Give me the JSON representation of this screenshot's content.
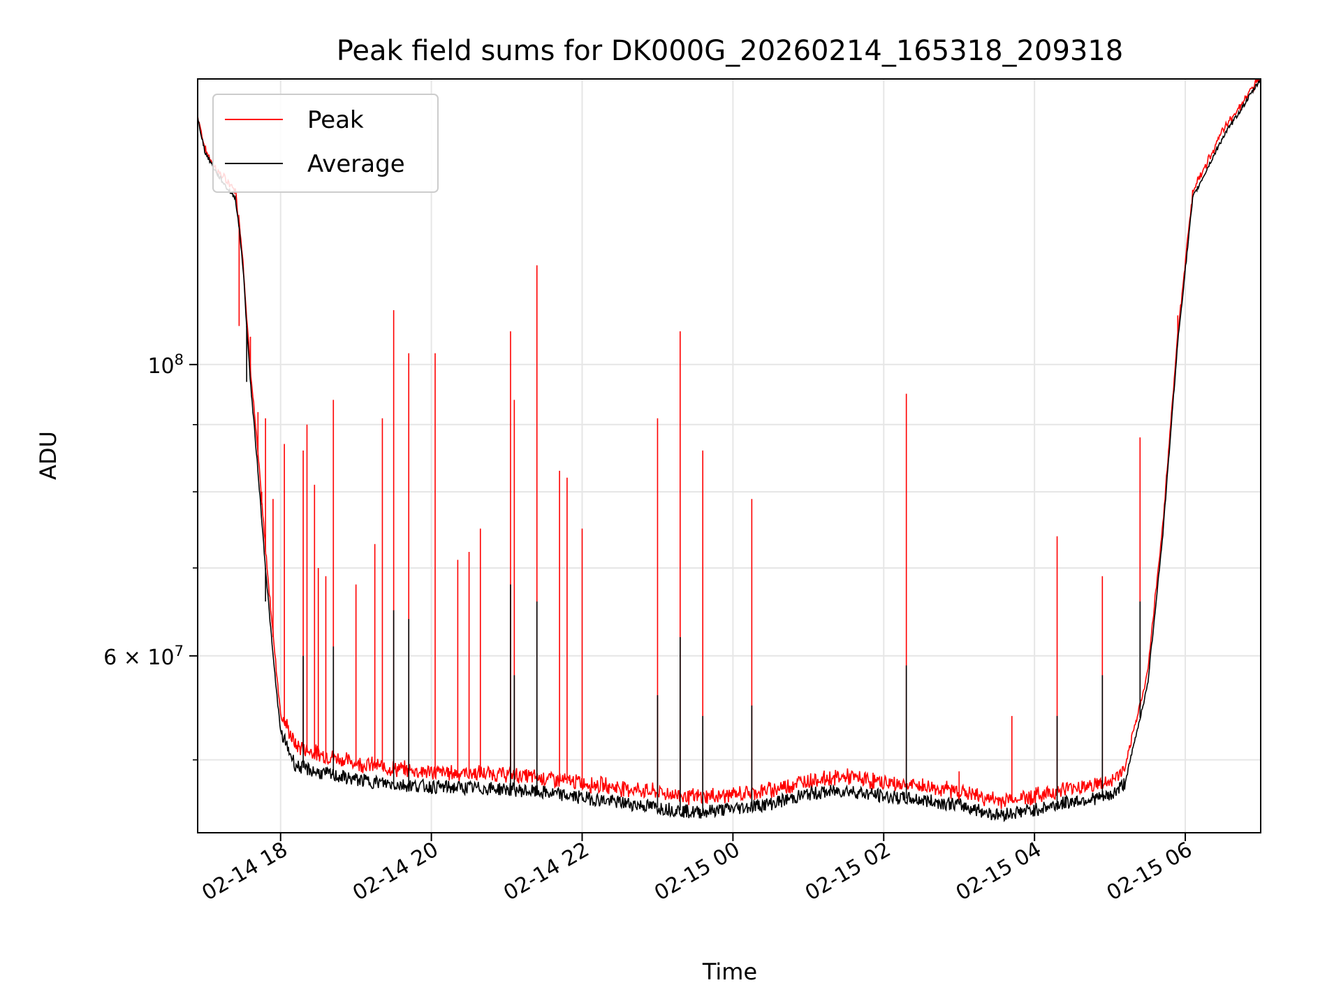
{
  "chart_data": {
    "type": "line",
    "title": "Peak field sums for DK000G_20260214_165318_209318",
    "xlabel": "Time",
    "ylabel": "ADU",
    "yscale": "log",
    "grid": true,
    "legend_position": "upper-left",
    "xlim_hours": [
      -1.1,
      13.0
    ],
    "ylim": [
      44000000,
      165000000
    ],
    "x_ticks": [
      {
        "hours": 0,
        "label": "02-14 18"
      },
      {
        "hours": 2,
        "label": "02-14 20"
      },
      {
        "hours": 4,
        "label": "02-14 22"
      },
      {
        "hours": 6,
        "label": "02-15 00"
      },
      {
        "hours": 8,
        "label": "02-15 02"
      },
      {
        "hours": 10,
        "label": "02-15 04"
      },
      {
        "hours": 12,
        "label": "02-15 06"
      }
    ],
    "y_major_ticks": [
      {
        "value": 100000000,
        "base": "10",
        "exp": "8"
      },
      {
        "value": 60000000,
        "base": "6 × 10",
        "exp": "7"
      }
    ],
    "y_minor_gridlines": [
      50000000,
      70000000,
      80000000,
      90000000
    ],
    "series": [
      {
        "name": "Peak",
        "color": "#ff0000",
        "baseline": [
          [
            -1.1,
            154000000
          ],
          [
            -1.0,
            145000000
          ],
          [
            -0.85,
            140000000
          ],
          [
            -0.7,
            137000000
          ],
          [
            -0.6,
            135000000
          ],
          [
            -0.55,
            128000000
          ],
          [
            -0.5,
            120000000
          ],
          [
            -0.45,
            108000000
          ],
          [
            -0.4,
            99000000
          ],
          [
            -0.3,
            85000000
          ],
          [
            -0.2,
            72000000
          ],
          [
            -0.1,
            62000000
          ],
          [
            0.0,
            54000000
          ],
          [
            0.2,
            51000000
          ],
          [
            0.5,
            50300000
          ],
          [
            1.0,
            49500000
          ],
          [
            1.5,
            49000000
          ],
          [
            2.0,
            48700000
          ],
          [
            2.5,
            48600000
          ],
          [
            3.0,
            48500000
          ],
          [
            3.5,
            48200000
          ],
          [
            4.0,
            47800000
          ],
          [
            4.5,
            47400000
          ],
          [
            5.0,
            47000000
          ],
          [
            5.5,
            46600000
          ],
          [
            6.0,
            46800000
          ],
          [
            6.5,
            47200000
          ],
          [
            7.0,
            48000000
          ],
          [
            7.5,
            48300000
          ],
          [
            8.0,
            47800000
          ],
          [
            8.5,
            47500000
          ],
          [
            9.0,
            47100000
          ],
          [
            9.5,
            46300000
          ],
          [
            10.0,
            46700000
          ],
          [
            10.5,
            47400000
          ],
          [
            11.0,
            47800000
          ],
          [
            11.2,
            49000000
          ],
          [
            11.5,
            58000000
          ],
          [
            11.7,
            75000000
          ],
          [
            11.9,
            105000000
          ],
          [
            12.1,
            135000000
          ],
          [
            12.5,
            150000000
          ],
          [
            13.0,
            165000000
          ]
        ],
        "spikes": [
          [
            -0.55,
            107000000
          ],
          [
            -0.4,
            105000000
          ],
          [
            -0.3,
            92000000
          ],
          [
            -0.25,
            80000000
          ],
          [
            -0.2,
            91000000
          ],
          [
            -0.1,
            79000000
          ],
          [
            0.05,
            87000000
          ],
          [
            0.3,
            86000000
          ],
          [
            0.35,
            90000000
          ],
          [
            0.45,
            81000000
          ],
          [
            0.5,
            70000000
          ],
          [
            0.6,
            69000000
          ],
          [
            0.7,
            94000000
          ],
          [
            1.0,
            68000000
          ],
          [
            1.25,
            73000000
          ],
          [
            1.35,
            91000000
          ],
          [
            1.5,
            110000000
          ],
          [
            1.7,
            102000000
          ],
          [
            2.05,
            102000000
          ],
          [
            2.35,
            71000000
          ],
          [
            2.5,
            72000000
          ],
          [
            2.65,
            75000000
          ],
          [
            3.05,
            106000000
          ],
          [
            3.1,
            94000000
          ],
          [
            3.4,
            119000000
          ],
          [
            3.7,
            83000000
          ],
          [
            3.8,
            82000000
          ],
          [
            4.0,
            75000000
          ],
          [
            5.0,
            91000000
          ],
          [
            5.3,
            106000000
          ],
          [
            5.6,
            86000000
          ],
          [
            6.25,
            79000000
          ],
          [
            8.3,
            95000000
          ],
          [
            9.0,
            49000000
          ],
          [
            9.7,
            54000000
          ],
          [
            10.3,
            74000000
          ],
          [
            10.9,
            69000000
          ],
          [
            11.4,
            88000000
          ],
          [
            11.9,
            109000000
          ]
        ]
      },
      {
        "name": "Average",
        "color": "#000000",
        "baseline": [
          [
            -1.1,
            154000000
          ],
          [
            -1.0,
            145000000
          ],
          [
            -0.85,
            140000000
          ],
          [
            -0.7,
            136000000
          ],
          [
            -0.6,
            134000000
          ],
          [
            -0.55,
            127000000
          ],
          [
            -0.5,
            119000000
          ],
          [
            -0.45,
            107000000
          ],
          [
            -0.4,
            97000000
          ],
          [
            -0.3,
            83000000
          ],
          [
            -0.2,
            70000000
          ],
          [
            -0.1,
            60000000
          ],
          [
            0.0,
            52500000
          ],
          [
            0.2,
            49500000
          ],
          [
            0.5,
            48900000
          ],
          [
            1.0,
            48300000
          ],
          [
            1.5,
            47900000
          ],
          [
            2.0,
            47700000
          ],
          [
            2.5,
            47600000
          ],
          [
            3.0,
            47500000
          ],
          [
            3.5,
            47200000
          ],
          [
            4.0,
            46800000
          ],
          [
            4.5,
            46400000
          ],
          [
            5.0,
            46000000
          ],
          [
            5.5,
            45600000
          ],
          [
            6.0,
            45900000
          ],
          [
            6.5,
            46300000
          ],
          [
            7.0,
            47100000
          ],
          [
            7.5,
            47400000
          ],
          [
            8.0,
            46900000
          ],
          [
            8.5,
            46600000
          ],
          [
            9.0,
            46200000
          ],
          [
            9.5,
            45400000
          ],
          [
            10.0,
            45800000
          ],
          [
            10.5,
            46500000
          ],
          [
            11.0,
            46900000
          ],
          [
            11.2,
            48000000
          ],
          [
            11.5,
            57000000
          ],
          [
            11.7,
            74000000
          ],
          [
            11.9,
            104000000
          ],
          [
            12.1,
            134000000
          ],
          [
            12.5,
            149000000
          ],
          [
            13.0,
            165000000
          ]
        ],
        "spikes": [
          [
            -0.45,
            97000000
          ],
          [
            -0.2,
            66000000
          ],
          [
            0.3,
            60000000
          ],
          [
            0.7,
            61000000
          ],
          [
            1.5,
            65000000
          ],
          [
            1.7,
            64000000
          ],
          [
            3.05,
            68000000
          ],
          [
            3.1,
            58000000
          ],
          [
            3.4,
            66000000
          ],
          [
            5.0,
            56000000
          ],
          [
            5.3,
            62000000
          ],
          [
            5.6,
            54000000
          ],
          [
            6.25,
            55000000
          ],
          [
            8.3,
            59000000
          ],
          [
            10.3,
            54000000
          ],
          [
            10.9,
            58000000
          ],
          [
            11.4,
            66000000
          ]
        ]
      }
    ]
  }
}
